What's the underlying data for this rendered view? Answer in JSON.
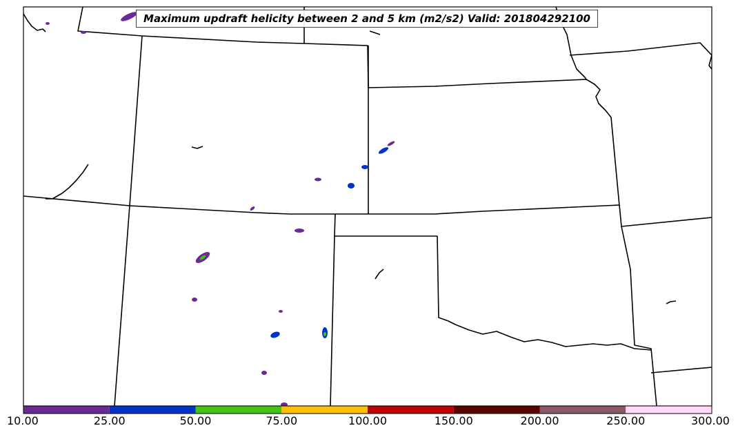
{
  "title": "Maximum updraft helicity between 2 and 5 km (m2/s2) Valid: 201804292100",
  "colorbar": {
    "ticks": [
      "10.00",
      "25.00",
      "50.00",
      "75.00",
      "100.00",
      "150.00",
      "200.00",
      "250.00",
      "300.00"
    ],
    "colors": [
      "#6b2a96",
      "#0033cc",
      "#44c411",
      "#ffc000",
      "#c00000",
      "#5c0000",
      "#8a5866",
      "#ffd9f5"
    ]
  },
  "colors": {
    "border": "#000000",
    "uh_low": "#6b2a96",
    "uh_mid": "#0033cc",
    "uh_high": "#44c411"
  }
}
